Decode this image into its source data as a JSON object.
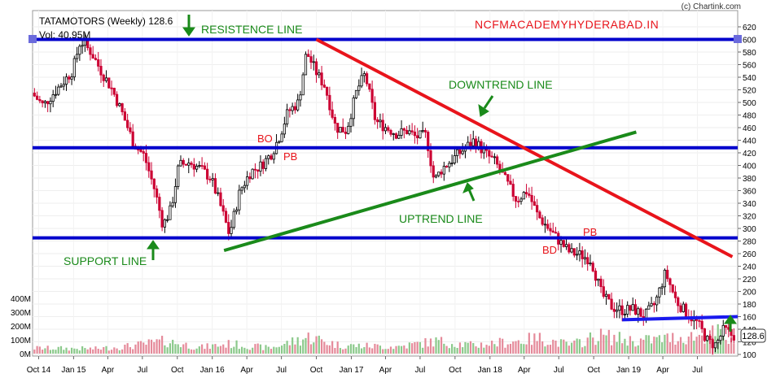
{
  "watermark": "(c) Chartink.com",
  "chart_data": {
    "type": "candlestick",
    "title": "TATAMOTORS (Weekly) 128.6",
    "subtitle": "Vol: 40.95M",
    "brand_text": "NCFMACADEMYHYDERABAD.IN",
    "last_price": "128.6",
    "y_axis": {
      "ticks": [
        "100",
        "120",
        "140",
        "160",
        "180",
        "200",
        "220",
        "240",
        "260",
        "280",
        "300",
        "320",
        "340",
        "360",
        "380",
        "400",
        "420",
        "440",
        "460",
        "480",
        "500",
        "520",
        "540",
        "560",
        "580",
        "600",
        "620"
      ],
      "ylim": [
        100,
        625
      ]
    },
    "volume_axis": {
      "ticks": [
        "0M",
        "100M",
        "200M",
        "300M",
        "400M"
      ],
      "ylim": [
        0,
        400
      ]
    },
    "x_axis": {
      "ticks": [
        "Oct 14",
        "Jan 15",
        "Apr",
        "Jul",
        "Oct",
        "Jan 16",
        "Apr",
        "Jul",
        "Oct",
        "Jan 17",
        "Apr",
        "Jul",
        "Oct",
        "Jan 18",
        "Apr",
        "Jul",
        "Oct",
        "Jan 19",
        "Apr",
        "Jul"
      ],
      "xlim": [
        "2014-09-15",
        "2019-10-15"
      ]
    },
    "price_path": [
      [
        "2014-09-20",
        515
      ],
      [
        "2014-10-20",
        495
      ],
      [
        "2014-12-01",
        525
      ],
      [
        "2015-01-05",
        550
      ],
      [
        "2015-01-26",
        598
      ],
      [
        "2015-02-23",
        580
      ],
      [
        "2015-03-23",
        548
      ],
      [
        "2015-04-20",
        520
      ],
      [
        "2015-05-18",
        480
      ],
      [
        "2015-06-15",
        435
      ],
      [
        "2015-07-13",
        415
      ],
      [
        "2015-08-10",
        360
      ],
      [
        "2015-08-31",
        305
      ],
      [
        "2015-09-21",
        330
      ],
      [
        "2015-10-12",
        400
      ],
      [
        "2015-11-09",
        405
      ],
      [
        "2015-12-07",
        395
      ],
      [
        "2016-01-04",
        380
      ],
      [
        "2016-01-25",
        345
      ],
      [
        "2016-02-22",
        290
      ],
      [
        "2016-03-21",
        360
      ],
      [
        "2016-04-18",
        390
      ],
      [
        "2016-05-16",
        400
      ],
      [
        "2016-06-13",
        420
      ],
      [
        "2016-07-04",
        448
      ],
      [
        "2016-07-25",
        485
      ],
      [
        "2016-08-22",
        500
      ],
      [
        "2016-09-12",
        580
      ],
      [
        "2016-10-10",
        545
      ],
      [
        "2016-10-31",
        525
      ],
      [
        "2016-11-28",
        460
      ],
      [
        "2016-12-26",
        455
      ],
      [
        "2017-01-23",
        520
      ],
      [
        "2017-02-13",
        545
      ],
      [
        "2017-03-13",
        470
      ],
      [
        "2017-04-10",
        460
      ],
      [
        "2017-05-08",
        450
      ],
      [
        "2017-06-05",
        455
      ],
      [
        "2017-06-26",
        445
      ],
      [
        "2017-07-24",
        448
      ],
      [
        "2017-08-14",
        375
      ],
      [
        "2017-09-04",
        395
      ],
      [
        "2017-10-02",
        410
      ],
      [
        "2017-10-30",
        425
      ],
      [
        "2017-11-27",
        440
      ],
      [
        "2017-12-25",
        420
      ],
      [
        "2018-01-22",
        405
      ],
      [
        "2018-02-19",
        375
      ],
      [
        "2018-03-19",
        345
      ],
      [
        "2018-04-16",
        360
      ],
      [
        "2018-05-14",
        320
      ],
      [
        "2018-06-11",
        300
      ],
      [
        "2018-07-09",
        280
      ],
      [
        "2018-08-06",
        262
      ],
      [
        "2018-09-03",
        258
      ],
      [
        "2018-10-01",
        250
      ],
      [
        "2018-10-29",
        195
      ],
      [
        "2018-11-26",
        175
      ],
      [
        "2018-12-24",
        170
      ],
      [
        "2019-01-21",
        172
      ],
      [
        "2019-02-18",
        160
      ],
      [
        "2019-03-18",
        180
      ],
      [
        "2019-04-15",
        230
      ],
      [
        "2019-05-13",
        185
      ],
      [
        "2019-06-10",
        165
      ],
      [
        "2019-07-08",
        150
      ],
      [
        "2019-08-05",
        120
      ],
      [
        "2019-08-26",
        115
      ],
      [
        "2019-09-16",
        140
      ],
      [
        "2019-10-07",
        130
      ]
    ],
    "volume_path": [
      [
        "2014-09-20",
        40
      ],
      [
        "2015-03-01",
        35
      ],
      [
        "2015-06-01",
        55
      ],
      [
        "2015-08-31",
        90
      ],
      [
        "2015-12-01",
        45
      ],
      [
        "2016-02-15",
        70
      ],
      [
        "2016-06-01",
        40
      ],
      [
        "2016-09-12",
        120
      ],
      [
        "2016-12-01",
        60
      ],
      [
        "2017-05-01",
        50
      ],
      [
        "2017-08-14",
        90
      ],
      [
        "2017-11-15",
        60
      ],
      [
        "2018-02-01",
        80
      ],
      [
        "2018-05-14",
        110
      ],
      [
        "2018-08-01",
        60
      ],
      [
        "2018-10-15",
        130
      ],
      [
        "2019-01-21",
        90
      ],
      [
        "2019-04-15",
        110
      ],
      [
        "2019-07-15",
        130
      ],
      [
        "2019-08-26",
        150
      ],
      [
        "2019-10-07",
        60
      ]
    ],
    "lines": [
      {
        "label": "RESISTENCE LINE",
        "kind": "horizontal",
        "y": 600,
        "color": "#0000cc"
      },
      {
        "label": "",
        "kind": "horizontal",
        "y": 428,
        "color": "#0000cc"
      },
      {
        "label": "SUPPORT LINE",
        "kind": "horizontal",
        "y": 285,
        "color": "#0000cc"
      },
      {
        "label": "",
        "kind": "segment",
        "from": [
          "2018-12-15",
          155
        ],
        "to": [
          "2019-10-15",
          160
        ],
        "color": "#1a1aee"
      },
      {
        "label": "DOWNTREND LINE",
        "kind": "segment",
        "from": [
          "2016-10-01",
          600
        ],
        "to": [
          "2019-10-01",
          255
        ],
        "color": "#e8141b"
      },
      {
        "label": "UPTREND LINE",
        "kind": "segment",
        "from": [
          "2016-02-01",
          265
        ],
        "to": [
          "2019-01-21",
          453
        ],
        "color": "#1a8a1a"
      }
    ],
    "annotations": [
      "BO",
      "PB",
      "BD",
      "PB"
    ],
    "colors": {
      "up": "#000000",
      "down": "#cc0033",
      "volume": "#e58a9a",
      "volume_up": "#8bc98b"
    }
  }
}
